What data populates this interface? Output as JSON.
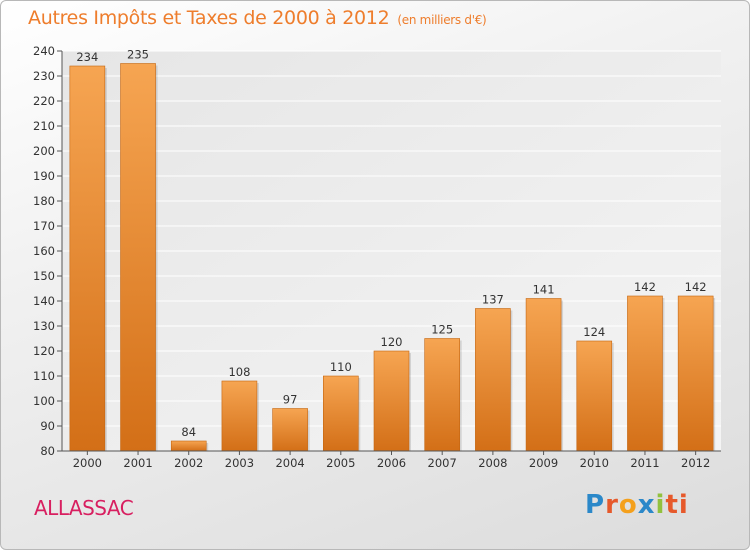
{
  "header": {
    "title": "Autres Impôts et Taxes de 2000 à 2012",
    "unit": "(en milliers d'€)"
  },
  "footer": {
    "place": "ALLASSAC",
    "logo": [
      "P",
      "r",
      "o",
      "x",
      "i",
      "ti"
    ]
  },
  "colors": {
    "bar_light": "#f6a552",
    "bar_dark": "#d36f17",
    "title": "#ee7d2c",
    "place": "#d81f60"
  },
  "chart_data": {
    "type": "bar",
    "title": "Autres Impôts et Taxes de 2000 à 2012",
    "subtitle": "(en milliers d'€)",
    "xlabel": "",
    "ylabel": "",
    "categories": [
      "2000",
      "2001",
      "2002",
      "2003",
      "2004",
      "2005",
      "2006",
      "2007",
      "2008",
      "2009",
      "2010",
      "2011",
      "2012"
    ],
    "values": [
      234,
      235,
      84,
      108,
      97,
      110,
      120,
      125,
      137,
      141,
      124,
      142,
      142
    ],
    "ylim": [
      80,
      240
    ],
    "yticks": [
      80,
      90,
      100,
      110,
      120,
      130,
      140,
      150,
      160,
      170,
      180,
      190,
      200,
      210,
      220,
      230,
      240
    ],
    "grid": true,
    "legend": "none"
  }
}
